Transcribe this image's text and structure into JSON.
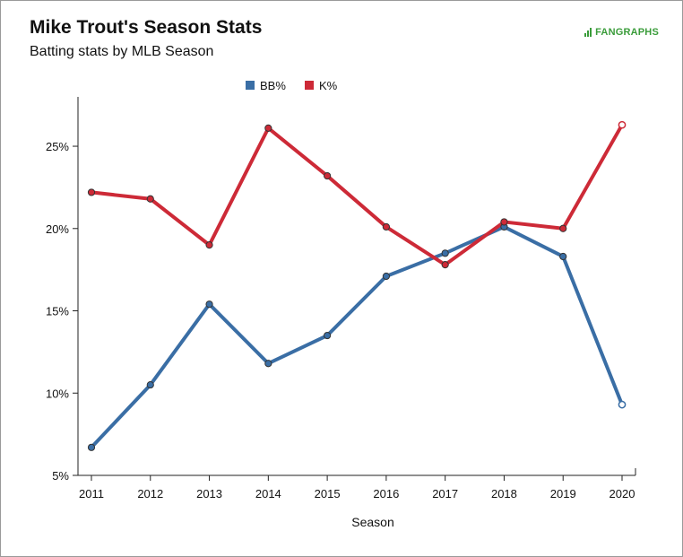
{
  "header": {
    "title": "Mike Trout's Season Stats",
    "subtitle": "Batting stats by MLB Season"
  },
  "brand": {
    "name": "FANGRAPHS",
    "icon": "fangraphs-logo-icon",
    "color": "#3a9c3a"
  },
  "chart_data": {
    "type": "line",
    "title": "Mike Trout's Season Stats",
    "subtitle": "Batting stats by MLB Season",
    "xlabel": "Season",
    "ylabel": "",
    "x": [
      2011,
      2012,
      2013,
      2014,
      2015,
      2016,
      2017,
      2018,
      2019,
      2020
    ],
    "ylim": [
      5,
      28
    ],
    "yticks": [
      5,
      10,
      15,
      20,
      25
    ],
    "ytick_format": "%",
    "grid": false,
    "legend_position": "top-center",
    "series": [
      {
        "name": "BB%",
        "color": "#3a6ea5",
        "values": [
          6.7,
          10.5,
          15.4,
          11.8,
          13.5,
          17.1,
          18.5,
          20.1,
          18.3,
          9.3
        ],
        "last_point_hollow": true
      },
      {
        "name": "K%",
        "color": "#cd2a37",
        "values": [
          22.2,
          21.8,
          19.0,
          26.1,
          23.2,
          20.1,
          17.8,
          20.4,
          20.0,
          26.3
        ],
        "last_point_hollow": true
      }
    ]
  }
}
